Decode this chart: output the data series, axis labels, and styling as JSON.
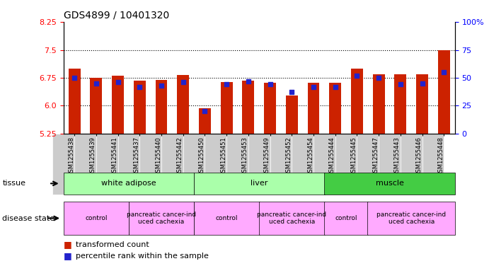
{
  "title": "GDS4899 / 10401320",
  "samples": [
    "GSM1255438",
    "GSM1255439",
    "GSM1255441",
    "GSM1255437",
    "GSM1255440",
    "GSM1255442",
    "GSM1255450",
    "GSM1255451",
    "GSM1255453",
    "GSM1255449",
    "GSM1255452",
    "GSM1255454",
    "GSM1255444",
    "GSM1255445",
    "GSM1255447",
    "GSM1255443",
    "GSM1255446",
    "GSM1255448"
  ],
  "red_values": [
    7.0,
    6.75,
    6.8,
    6.68,
    6.7,
    6.82,
    5.93,
    6.63,
    6.68,
    6.62,
    6.28,
    6.62,
    6.62,
    7.0,
    6.85,
    6.85,
    6.85,
    7.5
  ],
  "blue_values": [
    50,
    45,
    46,
    42,
    43,
    46,
    20,
    44,
    47,
    44,
    37,
    42,
    42,
    52,
    50,
    44,
    45,
    55
  ],
  "ymin": 5.25,
  "ymax": 8.25,
  "yticks_left": [
    5.25,
    6.0,
    6.75,
    7.5,
    8.25
  ],
  "yticks_right": [
    0,
    25,
    50,
    75,
    100
  ],
  "ylabel_left": "",
  "ylabel_right": "",
  "bar_color": "#cc2200",
  "blue_color": "#2222cc",
  "grid_color": "black",
  "tissue_groups": [
    {
      "label": "white adipose",
      "start": 0,
      "end": 5,
      "color": "#aaffaa"
    },
    {
      "label": "liver",
      "start": 6,
      "end": 11,
      "color": "#aaffaa"
    },
    {
      "label": "muscle",
      "start": 12,
      "end": 17,
      "color": "#44cc44"
    }
  ],
  "disease_groups": [
    {
      "label": "control",
      "start": 0,
      "end": 2,
      "color": "#ffaaff"
    },
    {
      "label": "pancreatic cancer-ind\nuced cachexia",
      "start": 3,
      "end": 5,
      "color": "#ffaaff"
    },
    {
      "label": "control",
      "start": 6,
      "end": 8,
      "color": "#ffaaff"
    },
    {
      "label": "pancreatic cancer-ind\nuced cachexia",
      "start": 9,
      "end": 11,
      "color": "#ffaaff"
    },
    {
      "label": "control",
      "start": 12,
      "end": 13,
      "color": "#ffaaff"
    },
    {
      "label": "pancreatic cancer-ind\nuced cachexia",
      "start": 14,
      "end": 17,
      "color": "#ffaaff"
    }
  ],
  "legend_red": "transformed count",
  "legend_blue": "percentile rank within the sample",
  "tissue_label": "tissue",
  "disease_label": "disease state",
  "bg_color": "#ffffff"
}
